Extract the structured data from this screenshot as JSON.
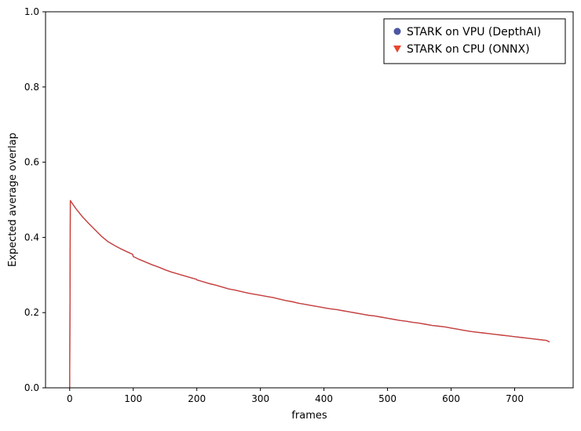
{
  "chart_data": {
    "type": "line",
    "title": "",
    "xlabel": "frames",
    "ylabel": "Expected average overlap",
    "xlim": [
      -38,
      792
    ],
    "ylim": [
      0,
      1
    ],
    "xticks": [
      0,
      100,
      200,
      300,
      400,
      500,
      600,
      700
    ],
    "xtick_labels": [
      "0",
      "100",
      "200",
      "300",
      "400",
      "500",
      "600",
      "700"
    ],
    "yticks": [
      0,
      0.2,
      0.4,
      0.6,
      0.8,
      1.0
    ],
    "ytick_labels": [
      "0.0",
      "0.2",
      "0.4",
      "0.6",
      "0.8",
      "1.0"
    ],
    "grid": false,
    "legend_position": "top-right",
    "series": [
      {
        "name": "STARK on VPU (DepthAI)",
        "color": "#4c56a4",
        "marker": "circle",
        "x": [
          0,
          1,
          5,
          10,
          20,
          30,
          40,
          50,
          60,
          70,
          80,
          90,
          99,
          100,
          110,
          120,
          130,
          140,
          150,
          160,
          170,
          180,
          190,
          199,
          200,
          210,
          220,
          230,
          240,
          250,
          260,
          270,
          280,
          290,
          300,
          310,
          320,
          330,
          340,
          350,
          360,
          370,
          380,
          390,
          400,
          410,
          420,
          430,
          440,
          450,
          460,
          470,
          480,
          490,
          500,
          510,
          520,
          530,
          540,
          550,
          560,
          570,
          580,
          590,
          600,
          610,
          620,
          630,
          640,
          650,
          660,
          670,
          680,
          690,
          700,
          710,
          720,
          730,
          740,
          750,
          755
        ],
        "y": [
          0.0,
          0.498,
          0.488,
          0.476,
          0.455,
          0.437,
          0.42,
          0.403,
          0.389,
          0.379,
          0.37,
          0.362,
          0.355,
          0.349,
          0.341,
          0.334,
          0.327,
          0.321,
          0.314,
          0.308,
          0.303,
          0.298,
          0.293,
          0.289,
          0.287,
          0.282,
          0.277,
          0.273,
          0.268,
          0.263,
          0.26,
          0.256,
          0.252,
          0.249,
          0.246,
          0.243,
          0.24,
          0.236,
          0.232,
          0.229,
          0.225,
          0.222,
          0.219,
          0.216,
          0.213,
          0.21,
          0.208,
          0.205,
          0.202,
          0.199,
          0.196,
          0.193,
          0.191,
          0.188,
          0.185,
          0.182,
          0.179,
          0.177,
          0.174,
          0.172,
          0.169,
          0.166,
          0.164,
          0.162,
          0.159,
          0.156,
          0.153,
          0.15,
          0.148,
          0.146,
          0.144,
          0.142,
          0.14,
          0.138,
          0.136,
          0.134,
          0.132,
          0.13,
          0.128,
          0.126,
          0.122
        ]
      },
      {
        "name": "STARK on CPU (ONNX)",
        "color": "#e8452d",
        "marker": "triangle-down",
        "x": [
          0,
          1,
          5,
          10,
          20,
          30,
          40,
          50,
          60,
          70,
          80,
          90,
          99,
          100,
          110,
          120,
          130,
          140,
          150,
          160,
          170,
          180,
          190,
          199,
          200,
          210,
          220,
          230,
          240,
          250,
          260,
          270,
          280,
          290,
          300,
          310,
          320,
          330,
          340,
          350,
          360,
          370,
          380,
          390,
          400,
          410,
          420,
          430,
          440,
          450,
          460,
          470,
          480,
          490,
          500,
          510,
          520,
          530,
          540,
          550,
          560,
          570,
          580,
          590,
          600,
          610,
          620,
          630,
          640,
          650,
          660,
          670,
          680,
          690,
          700,
          710,
          720,
          730,
          740,
          750,
          755
        ],
        "y": [
          0.0,
          0.498,
          0.488,
          0.476,
          0.455,
          0.437,
          0.42,
          0.403,
          0.389,
          0.379,
          0.37,
          0.362,
          0.355,
          0.349,
          0.341,
          0.334,
          0.327,
          0.321,
          0.314,
          0.308,
          0.303,
          0.298,
          0.293,
          0.289,
          0.287,
          0.282,
          0.277,
          0.273,
          0.268,
          0.263,
          0.26,
          0.256,
          0.252,
          0.249,
          0.246,
          0.243,
          0.24,
          0.236,
          0.232,
          0.229,
          0.225,
          0.222,
          0.219,
          0.216,
          0.213,
          0.21,
          0.208,
          0.205,
          0.202,
          0.199,
          0.196,
          0.193,
          0.191,
          0.188,
          0.185,
          0.182,
          0.179,
          0.177,
          0.174,
          0.172,
          0.169,
          0.166,
          0.164,
          0.162,
          0.159,
          0.156,
          0.153,
          0.15,
          0.148,
          0.146,
          0.144,
          0.142,
          0.14,
          0.138,
          0.136,
          0.134,
          0.132,
          0.13,
          0.128,
          0.126,
          0.122
        ]
      }
    ]
  }
}
